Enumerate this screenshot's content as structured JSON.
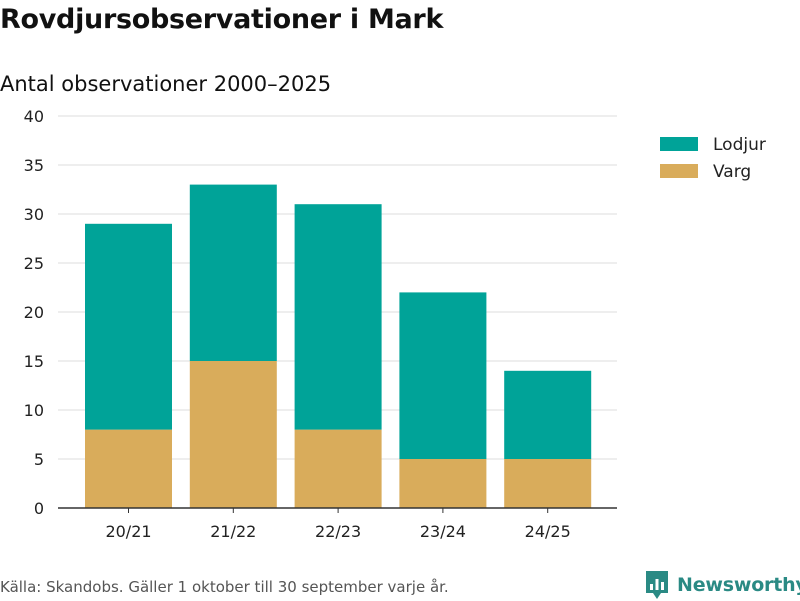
{
  "header": {
    "title": "Rovdjursobservationer i Mark",
    "subtitle": "Antal observationer 2000–2025"
  },
  "footer": {
    "source": "Källa: Skandobs. Gäller 1 oktober till 30 september varje år.",
    "brand": "Newsworthy",
    "brand_icon": "newsworthy-logo-icon"
  },
  "colors": {
    "lodjur": "#00a398",
    "varg": "#d9ac5b",
    "grid": "#dddddd",
    "axis": "#333333",
    "brand": "#2a8a84"
  },
  "chart_data": {
    "type": "bar",
    "stacked": true,
    "categories": [
      "20/21",
      "21/22",
      "22/23",
      "23/24",
      "24/25"
    ],
    "series": [
      {
        "name": "Varg",
        "values": [
          8,
          15,
          8,
          5,
          5
        ]
      },
      {
        "name": "Lodjur",
        "values": [
          21,
          18,
          23,
          17,
          9
        ]
      }
    ],
    "legend_order": [
      "Lodjur",
      "Varg"
    ],
    "title": "Rovdjursobservationer i Mark",
    "subtitle": "Antal observationer 2000–2025",
    "xlabel": "",
    "ylabel": "",
    "ylim": [
      0,
      40
    ],
    "yticks": [
      0,
      5,
      10,
      15,
      20,
      25,
      30,
      35,
      40
    ],
    "grid": true,
    "legend_position": "top-right"
  }
}
